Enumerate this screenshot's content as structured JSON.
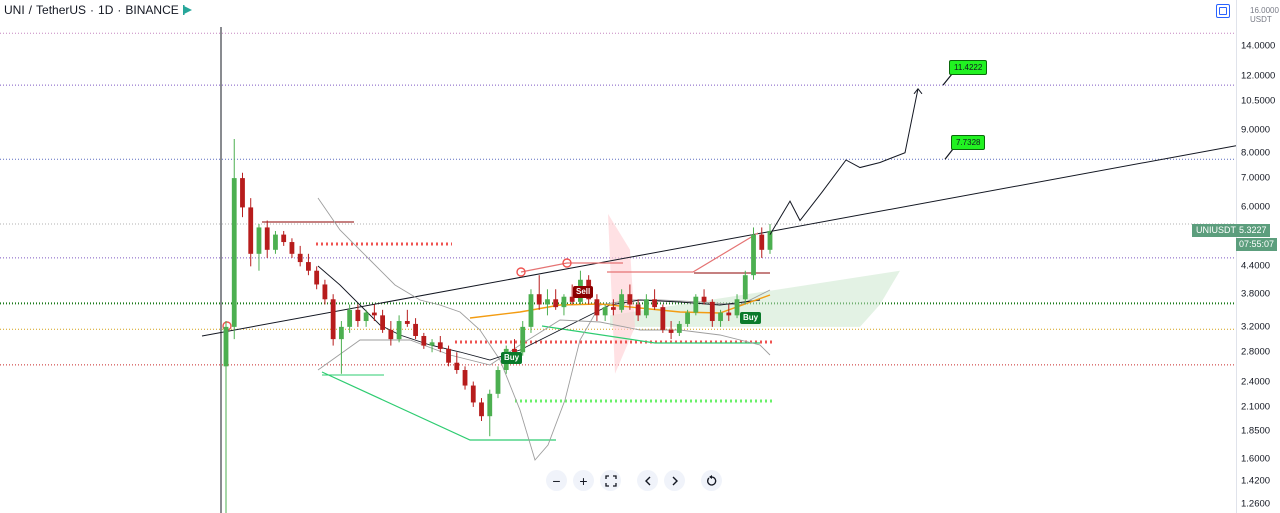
{
  "header": {
    "symbol": "UNI",
    "quote": "TetherUS",
    "interval": "1D",
    "exchange": "BINANCE",
    "separator": "/",
    "dot": "·"
  },
  "currency": {
    "top": "16.0000",
    "unit": "USDT"
  },
  "price_tag": {
    "symbol": "UNIUSDT",
    "price": "5.3227",
    "countdown": "07:55:07"
  },
  "targets": [
    {
      "label": "11.4222",
      "value": 11.4222
    },
    {
      "label": "7.7328",
      "value": 7.7328
    }
  ],
  "signals": [
    {
      "label": "Sell",
      "color": "#8b0000"
    },
    {
      "label": "Buy",
      "color": "#0a7a2a"
    },
    {
      "label": "Buy",
      "color": "#0a7a2a"
    }
  ],
  "toolbar": [
    "zoom-out",
    "zoom-in",
    "fullscreen",
    "scroll-left",
    "scroll-right",
    "reset"
  ],
  "colors": {
    "up": "#26a69a",
    "down": "#ef5350",
    "candle_up": "#4caf50",
    "candle_down": "#b71c1c"
  },
  "chart_data": {
    "type": "candlestick",
    "y_scale": "log",
    "y_ticks": [
      16.0,
      14.0,
      12.0,
      10.5,
      9.0,
      8.0,
      7.0,
      6.0,
      5.0,
      4.4,
      3.8,
      3.2,
      2.8,
      2.4,
      2.1,
      1.85,
      1.6,
      1.42,
      1.26
    ],
    "y_tick_labels": [
      "16.0000",
      "14.0000",
      "12.0000",
      "10.5000",
      "9.0000",
      "8.0000",
      "7.0000",
      "6.0000",
      "5.0000",
      "4.4000",
      "3.8000",
      "3.2000",
      "2.8000",
      "2.4000",
      "2.1000",
      "1.8500",
      "1.6000",
      "1.4200",
      "1.2600"
    ],
    "ylim": [
      1.22,
      17.2
    ],
    "last_price": 5.3227,
    "horizontal_levels": [
      {
        "price": 15.0,
        "color": "#c586c0",
        "style": "dotted"
      },
      {
        "price": 11.42,
        "color": "#7e57c2",
        "style": "dotted"
      },
      {
        "price": 7.73,
        "color": "#5c6bc0",
        "style": "dotted"
      },
      {
        "price": 5.5,
        "color": "#b0b0b0",
        "style": "dotted"
      },
      {
        "price": 4.6,
        "color": "#7e57c2",
        "style": "dotted"
      },
      {
        "price": 3.62,
        "color": "#1b7a1b",
        "style": "dotted"
      },
      {
        "price": 3.16,
        "color": "#d4a017",
        "style": "dotted"
      },
      {
        "price": 2.62,
        "color": "#c62828",
        "style": "dotted"
      }
    ],
    "ohlc": [
      [
        2.6,
        3.3,
        1.2,
        3.2
      ],
      [
        3.2,
        8.6,
        3.0,
        7.0
      ],
      [
        7.0,
        7.2,
        5.7,
        6.0
      ],
      [
        6.0,
        6.3,
        4.4,
        4.7
      ],
      [
        4.7,
        5.5,
        4.3,
        5.4
      ],
      [
        5.4,
        5.6,
        4.6,
        4.8
      ],
      [
        4.8,
        5.3,
        4.7,
        5.2
      ],
      [
        5.2,
        5.3,
        4.9,
        5.0
      ],
      [
        5.0,
        5.1,
        4.6,
        4.7
      ],
      [
        4.7,
        4.9,
        4.4,
        4.5
      ],
      [
        4.5,
        4.7,
        4.2,
        4.3
      ],
      [
        4.3,
        4.4,
        3.9,
        4.0
      ],
      [
        4.0,
        4.1,
        3.6,
        3.7
      ],
      [
        3.7,
        3.8,
        2.9,
        3.0
      ],
      [
        3.0,
        3.3,
        2.5,
        3.2
      ],
      [
        3.2,
        3.6,
        3.1,
        3.5
      ],
      [
        3.5,
        3.6,
        3.2,
        3.3
      ],
      [
        3.3,
        3.5,
        3.2,
        3.45
      ],
      [
        3.45,
        3.6,
        3.3,
        3.4
      ],
      [
        3.4,
        3.5,
        3.1,
        3.15
      ],
      [
        3.15,
        3.3,
        2.9,
        3.0
      ],
      [
        3.0,
        3.4,
        2.95,
        3.3
      ],
      [
        3.3,
        3.5,
        3.2,
        3.25
      ],
      [
        3.25,
        3.35,
        3.0,
        3.05
      ],
      [
        3.05,
        3.1,
        2.85,
        2.9
      ],
      [
        2.9,
        3.0,
        2.8,
        2.95
      ],
      [
        2.95,
        3.05,
        2.8,
        2.85
      ],
      [
        2.85,
        2.9,
        2.6,
        2.65
      ],
      [
        2.65,
        2.8,
        2.5,
        2.55
      ],
      [
        2.55,
        2.6,
        2.3,
        2.35
      ],
      [
        2.35,
        2.4,
        2.1,
        2.15
      ],
      [
        2.15,
        2.2,
        1.95,
        2.0
      ],
      [
        2.0,
        2.3,
        1.8,
        2.25
      ],
      [
        2.25,
        2.6,
        2.2,
        2.55
      ],
      [
        2.55,
        2.9,
        2.5,
        2.85
      ],
      [
        2.85,
        3.0,
        2.7,
        2.8
      ],
      [
        2.8,
        3.3,
        2.75,
        3.2
      ],
      [
        3.2,
        3.9,
        3.1,
        3.8
      ],
      [
        3.8,
        4.2,
        3.5,
        3.6
      ],
      [
        3.6,
        3.9,
        3.4,
        3.7
      ],
      [
        3.7,
        3.9,
        3.5,
        3.55
      ],
      [
        3.55,
        3.8,
        3.4,
        3.75
      ],
      [
        3.75,
        4.0,
        3.6,
        3.65
      ],
      [
        3.65,
        4.3,
        3.6,
        4.1
      ],
      [
        4.1,
        4.2,
        3.6,
        3.7
      ],
      [
        3.7,
        3.8,
        3.3,
        3.4
      ],
      [
        3.4,
        3.6,
        3.3,
        3.55
      ],
      [
        3.55,
        3.7,
        3.4,
        3.5
      ],
      [
        3.5,
        3.9,
        3.45,
        3.8
      ],
      [
        3.8,
        4.0,
        3.5,
        3.6
      ],
      [
        3.6,
        3.7,
        3.3,
        3.4
      ],
      [
        3.4,
        3.8,
        3.35,
        3.7
      ],
      [
        3.7,
        3.9,
        3.5,
        3.55
      ],
      [
        3.55,
        3.6,
        3.1,
        3.15
      ],
      [
        3.15,
        3.3,
        3.0,
        3.1
      ],
      [
        3.1,
        3.3,
        3.05,
        3.25
      ],
      [
        3.25,
        3.5,
        3.2,
        3.45
      ],
      [
        3.45,
        3.8,
        3.4,
        3.75
      ],
      [
        3.75,
        3.9,
        3.6,
        3.65
      ],
      [
        3.65,
        3.7,
        3.2,
        3.3
      ],
      [
        3.3,
        3.5,
        3.2,
        3.45
      ],
      [
        3.45,
        3.6,
        3.3,
        3.4
      ],
      [
        3.4,
        3.8,
        3.35,
        3.7
      ],
      [
        3.7,
        4.3,
        3.6,
        4.2
      ],
      [
        4.2,
        5.4,
        4.1,
        5.2
      ],
      [
        5.2,
        5.4,
        4.6,
        4.8
      ],
      [
        4.8,
        5.5,
        4.7,
        5.3
      ]
    ],
    "forecast_path": [
      [
        5.2,
        0
      ],
      [
        6.2,
        1
      ],
      [
        5.6,
        2
      ],
      [
        6.5,
        3
      ],
      [
        7.7,
        4
      ],
      [
        7.4,
        5
      ],
      [
        7.6,
        6
      ],
      [
        8.0,
        7
      ],
      [
        11.2,
        8
      ]
    ]
  }
}
